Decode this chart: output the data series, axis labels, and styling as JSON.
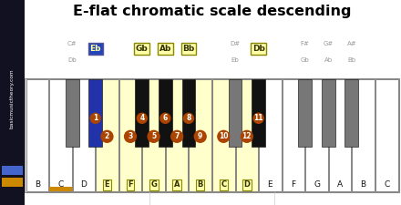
{
  "title": "E-flat chromatic scale descending",
  "title_fontsize": 11.5,
  "bg_color": "#ffffff",
  "sidebar_color": "#111122",
  "sidebar_text": "basicmusictheory.com",
  "white_keys": [
    "B",
    "C",
    "D",
    "E",
    "F",
    "G",
    "A",
    "B",
    "C",
    "D",
    "E",
    "F",
    "G",
    "A",
    "B",
    "C"
  ],
  "black_keys_between": [
    1,
    2,
    4,
    5,
    6,
    8,
    9,
    11,
    12,
    13
  ],
  "black_key_info": [
    {
      "line1": "C#",
      "line2": "Db",
      "highlighted": false
    },
    {
      "line1": "",
      "line2": "Eb",
      "highlighted": true,
      "box_color": "#2244bb",
      "text_color": "#ffff99",
      "key_color": "#2233aa"
    },
    {
      "line1": "",
      "line2": "Gb",
      "highlighted": true,
      "box_color": "#ffffaa",
      "text_color": "#333300",
      "key_color": "#111111"
    },
    {
      "line1": "",
      "line2": "Ab",
      "highlighted": true,
      "box_color": "#ffffaa",
      "text_color": "#333300",
      "key_color": "#111111"
    },
    {
      "line1": "",
      "line2": "Bb",
      "highlighted": true,
      "box_color": "#ffffaa",
      "text_color": "#333300",
      "key_color": "#111111"
    },
    {
      "line1": "D#",
      "line2": "Eb",
      "highlighted": false
    },
    {
      "line1": "",
      "line2": "Db",
      "highlighted": true,
      "box_color": "#ffffaa",
      "text_color": "#333300",
      "key_color": "#111111"
    },
    {
      "line1": "F#",
      "line2": "Gb",
      "highlighted": false
    },
    {
      "line1": "G#",
      "line2": "Ab",
      "highlighted": false
    },
    {
      "line1": "A#",
      "line2": "Bb",
      "highlighted": false
    }
  ],
  "black_circles": {
    "1": 1,
    "2": 4,
    "3": 6,
    "4": 8,
    "6": 11
  },
  "white_circles": {
    "3": 2,
    "4": 3,
    "5": 5,
    "6": 7,
    "7": 9,
    "8": 10,
    "9": 12
  },
  "highlighted_white": [
    3,
    4,
    5,
    6,
    7,
    8,
    9
  ],
  "orange_underline_white": 1,
  "circle_color": "#aa4400",
  "gray_black_color": "#777777",
  "normal_black_color": "#222222",
  "white_highlight_color": "#ffffcc",
  "label_box_color": "#ffffaa",
  "label_box_edge": "#888800"
}
